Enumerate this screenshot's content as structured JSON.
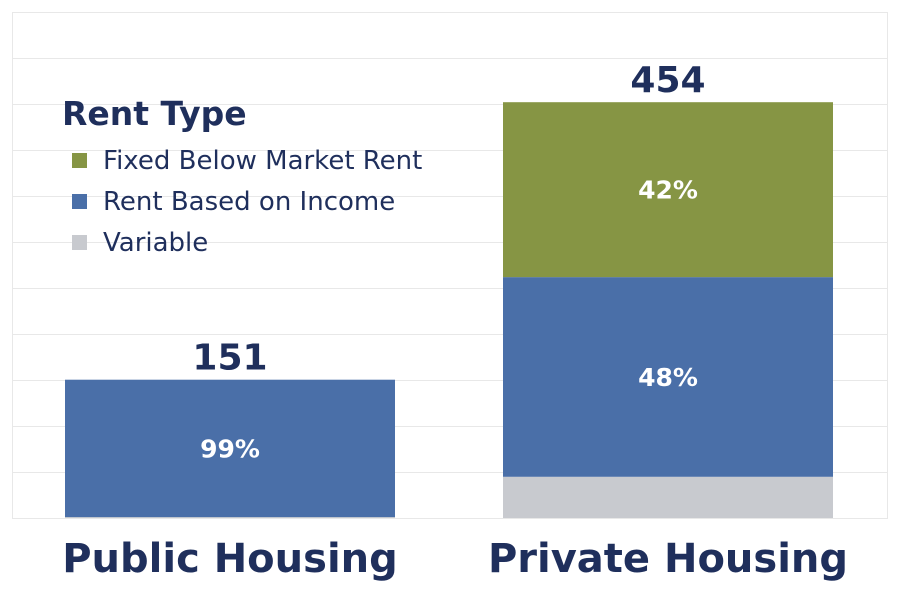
{
  "chart_data": {
    "type": "bar",
    "stacked": true,
    "categories": [
      "Public Housing",
      "Private Housing"
    ],
    "totals": [
      151,
      454
    ],
    "series": [
      {
        "name": "Variable",
        "color": "#c8cacf",
        "values": [
          1,
          45
        ],
        "labels": [
          "",
          ""
        ]
      },
      {
        "name": "Rent Based on Income",
        "color": "#4a6fa8",
        "values": [
          150,
          218
        ],
        "labels": [
          "99%",
          "48%"
        ]
      },
      {
        "name": "Fixed Below Market Rent",
        "color": "#869544",
        "values": [
          0,
          191
        ],
        "labels": [
          "",
          "42%"
        ]
      }
    ],
    "legend": {
      "title": "Rent Type",
      "placement": "top-left",
      "order": [
        "Fixed Below Market Rent",
        "Rent Based on Income",
        "Variable"
      ]
    },
    "ylim": [
      0,
      500
    ],
    "grid": true,
    "colors": {
      "text": "#1f2f5c",
      "grid": "#e8e8e8",
      "label_on_bar": "#ffffff"
    }
  }
}
